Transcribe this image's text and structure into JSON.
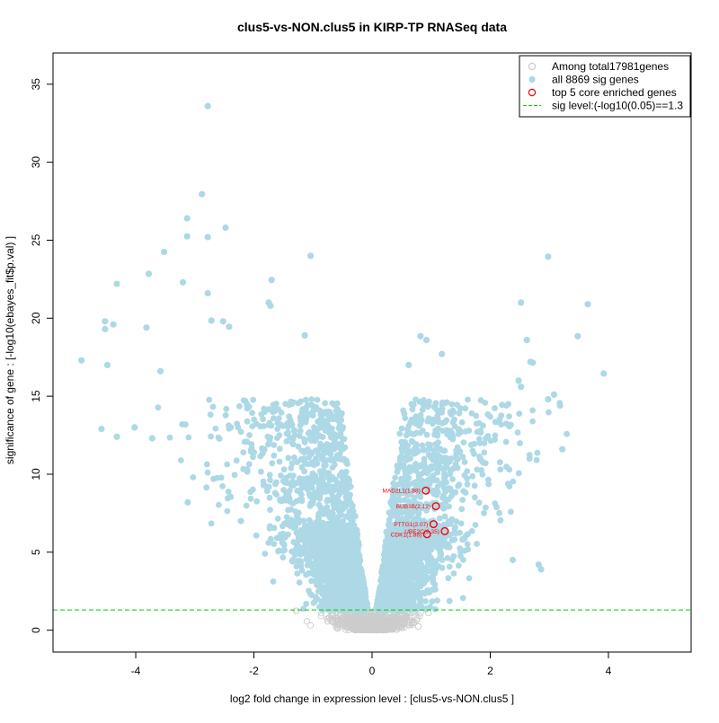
{
  "chart_data": {
    "type": "scatter",
    "title": "clus5-vs-NON.clus5 in KIRP-TP RNASeq data",
    "xlabel": "log2 fold change in expression level : [clus5-vs-NON.clus5 ]",
    "ylabel": "significance of gene : [-log10(ebayes_fit$p.val) ]",
    "xlim": [
      -5.4,
      5.4
    ],
    "ylim": [
      -1.4,
      37.0
    ],
    "x_ticks": [
      -4,
      -2,
      0,
      2,
      4
    ],
    "y_ticks": [
      0,
      5,
      10,
      15,
      20,
      25,
      30,
      35
    ],
    "x_tick_labels": [
      "-4",
      "-2",
      "0",
      "2",
      "4"
    ],
    "y_tick_labels": [
      "0",
      "5",
      "10",
      "15",
      "20",
      "25",
      "30",
      "35"
    ],
    "sig_threshold": 1.3,
    "total_genes": 17981,
    "sig_genes": 8869,
    "colors": {
      "all": "#cccccc",
      "sig": "#add8e6",
      "top": "#ff0000",
      "threshold": "#00cc00",
      "axis": "#000000"
    },
    "legend": {
      "position": "top-right",
      "items": [
        {
          "label": "Among total17981genes",
          "marker": "open-circle",
          "color": "#cccccc"
        },
        {
          "label": "all 8869 sig genes",
          "marker": "filled-circle",
          "color": "#add8e6"
        },
        {
          "label": "top 5 core enriched genes",
          "marker": "open-circle",
          "color": "#ff0000"
        },
        {
          "label": "sig level:(-log10(0.05)==1.3",
          "marker": "dashed-line",
          "color": "#00cc00"
        }
      ]
    },
    "top_genes": [
      {
        "label": "MAD2L1(1.88)",
        "x": 0.91,
        "y": 8.95
      },
      {
        "label": "BUB1B(2.12)",
        "x": 1.08,
        "y": 7.95
      },
      {
        "label": "PTTG1(2.07)",
        "x": 1.04,
        "y": 6.8
      },
      {
        "label": "CDK1(1.88)",
        "x": 0.93,
        "y": 6.15
      },
      {
        "label": "UBE2C(2.35)",
        "x": 1.23,
        "y": 6.35
      }
    ],
    "outliers": [
      [
        -2.78,
        33.6
      ],
      [
        -2.88,
        27.95
      ],
      [
        -3.13,
        26.4
      ],
      [
        -3.13,
        25.25
      ],
      [
        -2.48,
        25.8
      ],
      [
        -2.78,
        25.2
      ],
      [
        -1.04,
        24.0
      ],
      [
        -3.52,
        24.25
      ],
      [
        -3.78,
        22.85
      ],
      [
        -4.32,
        22.2
      ],
      [
        -3.2,
        22.3
      ],
      [
        -1.7,
        22.45
      ],
      [
        -2.78,
        21.6
      ],
      [
        -1.75,
        21.0
      ],
      [
        -1.72,
        20.8
      ],
      [
        -4.52,
        19.8
      ],
      [
        -4.52,
        19.3
      ],
      [
        -4.38,
        19.6
      ],
      [
        -3.82,
        19.4
      ],
      [
        -2.72,
        19.85
      ],
      [
        -2.52,
        19.8
      ],
      [
        -2.42,
        19.45
      ],
      [
        -1.14,
        18.9
      ],
      [
        -4.92,
        17.3
      ],
      [
        -4.48,
        17.0
      ],
      [
        -3.58,
        16.6
      ],
      [
        -4.02,
        13.0
      ],
      [
        -4.58,
        12.9
      ],
      [
        -4.32,
        12.4
      ],
      [
        -3.72,
        12.3
      ],
      [
        -3.12,
        8.2
      ],
      [
        -2.68,
        9.7
      ],
      [
        -2.22,
        7.0
      ],
      [
        2.98,
        23.95
      ],
      [
        3.65,
        20.9
      ],
      [
        2.52,
        21.0
      ],
      [
        3.48,
        18.85
      ],
      [
        2.62,
        18.6
      ],
      [
        3.92,
        16.45
      ],
      [
        3.08,
        15.1
      ],
      [
        2.98,
        14.8
      ],
      [
        3.18,
        14.4
      ],
      [
        3.22,
        11.6
      ],
      [
        2.68,
        17.2
      ],
      [
        2.72,
        17.15
      ],
      [
        0.82,
        18.85
      ],
      [
        0.92,
        18.6
      ],
      [
        1.18,
        17.7
      ],
      [
        0.62,
        17.0
      ],
      [
        2.48,
        16.0
      ],
      [
        2.52,
        15.6
      ],
      [
        2.82,
        4.2
      ],
      [
        2.86,
        3.9
      ],
      [
        2.38,
        4.5
      ]
    ]
  }
}
